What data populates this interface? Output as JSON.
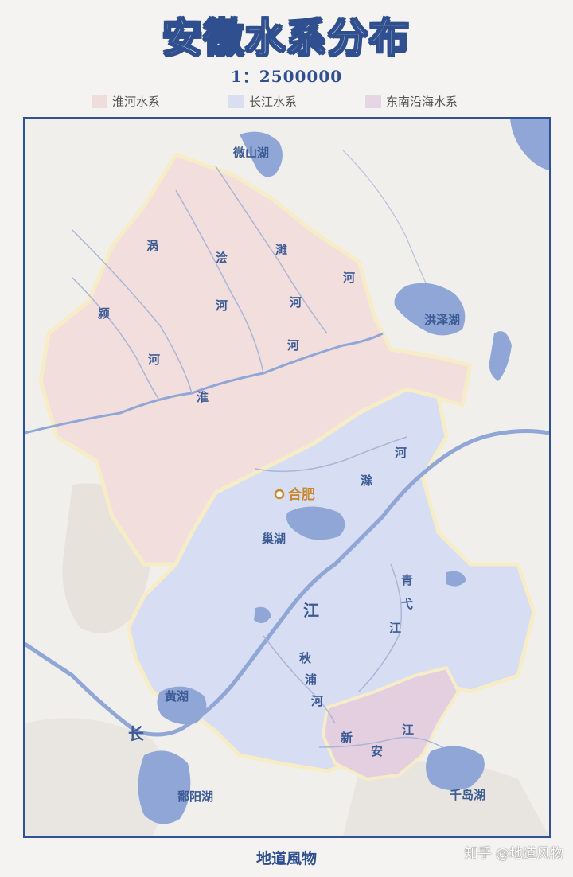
{
  "title": "安徽水系分布",
  "scale": "1：2500000",
  "legend": [
    {
      "label": "淮河水系",
      "color": "#f1dcdc"
    },
    {
      "label": "长江水系",
      "color": "#d9dff1"
    },
    {
      "label": "东南沿海水系",
      "color": "#e6d6e4"
    }
  ],
  "map": {
    "city": "合肥",
    "labels": {
      "weishan_lake": "微山湖",
      "hongze_lake": "洪泽湖",
      "chao_lake": "巢湖",
      "huang_lake": "黄湖",
      "poyang_lake": "鄱阳湖",
      "qiandao_lake": "千岛湖",
      "huai_1": "淮",
      "river_word": "河",
      "guo": "涡",
      "ying": "颍",
      "kuai": "浍",
      "sui": "濉",
      "chu": "滁",
      "jiang_word": "江",
      "chang": "长",
      "qing": "青",
      "yi": "弋",
      "qiu": "秋",
      "pu": "浦",
      "xin": "新",
      "an": "安"
    },
    "colors": {
      "huai_basin": "#f3dede",
      "yangtze_basin": "#d7ddf2",
      "southeast_basin": "#e3cfe0",
      "water": "#8fa6d6",
      "city": "#c8892e"
    }
  },
  "footer": "地道風物",
  "watermark": "知乎 @地道风物"
}
